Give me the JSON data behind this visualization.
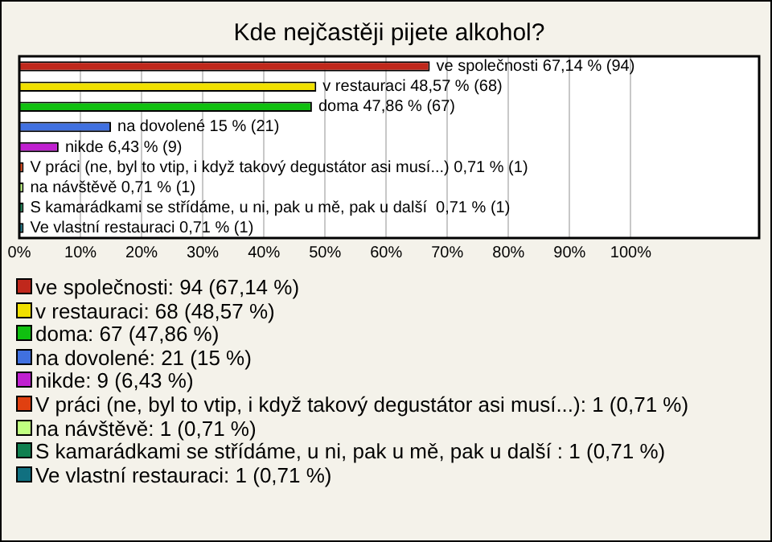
{
  "chart_data": {
    "type": "bar",
    "title": "Kde nejčastěji pijete alkohol?",
    "orientation": "horizontal",
    "stacked": true,
    "categories": [
      null,
      null,
      null,
      null,
      null,
      null,
      null,
      null,
      null
    ],
    "series": [
      {
        "name": "ve společnosti: 94 (67,14 %)",
        "color": "#c0281c",
        "values": [
          67.14,
          null,
          null,
          null,
          null,
          null,
          null,
          null,
          null
        ],
        "value_labels": [
          "ve společnosti 67,14 % (94)",
          null,
          null,
          null,
          null,
          null,
          null,
          null,
          null
        ]
      },
      {
        "name": "v restauraci: 68 (48,57 %)",
        "color": "#f0e000",
        "values": [
          null,
          48.57,
          null,
          null,
          null,
          null,
          null,
          null,
          null
        ],
        "value_labels": [
          null,
          "v restauraci 48,57 % (68)",
          null,
          null,
          null,
          null,
          null,
          null,
          null
        ]
      },
      {
        "name": "doma: 67 (47,86 %)",
        "color": "#10c010",
        "values": [
          null,
          null,
          47.86,
          null,
          null,
          null,
          null,
          null,
          null
        ],
        "value_labels": [
          null,
          null,
          "doma 47,86 % (67)",
          null,
          null,
          null,
          null,
          null,
          null
        ]
      },
      {
        "name": "na dovolené: 21 (15 %)",
        "color": "#4070e0",
        "values": [
          null,
          null,
          null,
          15,
          null,
          null,
          null,
          null,
          null
        ],
        "value_labels": [
          null,
          null,
          null,
          "na dovolené 15 % (21)",
          null,
          null,
          null,
          null,
          null
        ]
      },
      {
        "name": "nikde: 9 (6,43 %)",
        "color": "#c020d0",
        "values": [
          null,
          null,
          null,
          null,
          6.43,
          null,
          null,
          null,
          null
        ],
        "value_labels": [
          null,
          null,
          null,
          null,
          "nikde 6,43 % (9)",
          null,
          null,
          null,
          null
        ]
      },
      {
        "name": "V práci (ne, byl to vtip, i když takový degustátor asi musí...): 1 (0,71 %)",
        "color": "#e04010",
        "values": [
          null,
          null,
          null,
          null,
          null,
          0.71,
          null,
          null,
          null
        ],
        "value_labels": [
          null,
          null,
          null,
          null,
          null,
          "V práci (ne, byl to vtip, i když takový degustátor asi musí...) 0,71 % (1)",
          null,
          null,
          null
        ]
      },
      {
        "name": "na návštěvě: 1 (0,71 %)",
        "color": "#c0ff80",
        "values": [
          null,
          null,
          null,
          null,
          null,
          null,
          0.71,
          null,
          null
        ],
        "value_labels": [
          null,
          null,
          null,
          null,
          null,
          null,
          "na návštěvě 0,71 % (1)",
          null,
          null
        ]
      },
      {
        "name": "S kamarádkami se střídáme, u ni, pak u mě, pak u další : 1 (0,71 %)",
        "color": "#108050",
        "values": [
          null,
          null,
          null,
          null,
          null,
          null,
          null,
          0.71,
          null
        ],
        "value_labels": [
          null,
          null,
          null,
          null,
          null,
          null,
          null,
          "S kamarádkami se střídáme, u ni, pak u mě, pak u další  0,71 % (1)",
          null
        ]
      },
      {
        "name": "Ve vlastní restauraci: 1 (0,71 %)",
        "color": "#107080",
        "values": [
          null,
          null,
          null,
          null,
          null,
          null,
          null,
          null,
          0.71
        ],
        "value_labels": [
          null,
          null,
          null,
          null,
          null,
          null,
          null,
          null,
          "Ve vlastní restauraci 0,71 % (1)"
        ]
      }
    ],
    "xlim": [
      0,
      121
    ],
    "xticks": [
      {
        "value": 0,
        "label": "0%"
      },
      {
        "value": 10,
        "label": "10%"
      },
      {
        "value": 20,
        "label": "20%"
      },
      {
        "value": 30,
        "label": "30%"
      },
      {
        "value": 40,
        "label": "40%"
      },
      {
        "value": 50,
        "label": "50%"
      },
      {
        "value": 60,
        "label": "60%"
      },
      {
        "value": 70,
        "label": "70%"
      },
      {
        "value": 80,
        "label": "80%"
      },
      {
        "value": 90,
        "label": "90%"
      },
      {
        "value": 100,
        "label": "100%"
      }
    ],
    "grid": "x",
    "legend": "bottom",
    "tick_labels": "x"
  }
}
